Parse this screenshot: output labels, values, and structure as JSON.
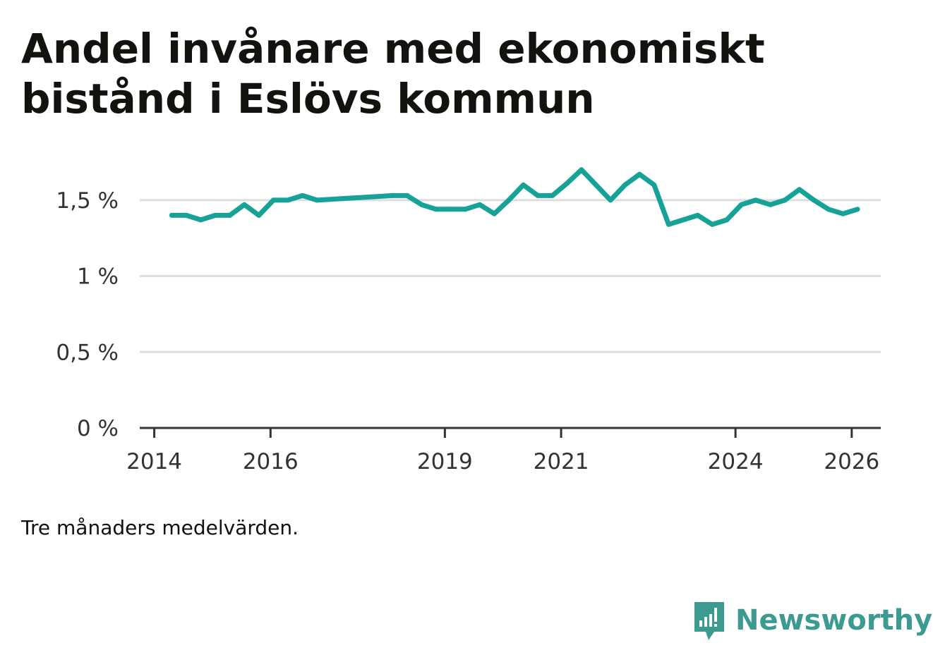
{
  "chart_data": {
    "type": "line",
    "title": "Andel invånare med ekonomiskt bistånd i Eslövs kommun",
    "note": "Tre månaders medelvärden.",
    "xlabel": "",
    "ylabel": "",
    "xlim": [
      2013.75,
      2026.5
    ],
    "ylim": [
      0,
      1.75
    ],
    "x_ticks": [
      {
        "value": 2014,
        "label": "2014"
      },
      {
        "value": 2016,
        "label": "2016"
      },
      {
        "value": 2019,
        "label": "2019"
      },
      {
        "value": 2021,
        "label": "2021"
      },
      {
        "value": 2024,
        "label": "2024"
      },
      {
        "value": 2026,
        "label": "2026"
      }
    ],
    "y_ticks": [
      {
        "value": 0,
        "label": "0 %"
      },
      {
        "value": 0.5,
        "label": "0,5 %"
      },
      {
        "value": 1,
        "label": "1 %"
      },
      {
        "value": 1.5,
        "label": "1,5 %"
      }
    ],
    "grid": true,
    "color": "#16a297",
    "series": [
      {
        "name": "Andel invånare med ekonomiskt bistånd",
        "x": [
          2014.3,
          2014.55,
          2014.8,
          2015.05,
          2015.3,
          2015.55,
          2015.8,
          2016.05,
          2016.3,
          2016.55,
          2016.8,
          2018.1,
          2018.35,
          2018.6,
          2018.85,
          2019.1,
          2019.35,
          2019.6,
          2019.85,
          2020.1,
          2020.35,
          2020.6,
          2020.85,
          2021.1,
          2021.35,
          2021.6,
          2021.85,
          2022.1,
          2022.35,
          2022.6,
          2022.85,
          2023.1,
          2023.35,
          2023.6,
          2023.85,
          2024.1,
          2024.35,
          2024.6,
          2024.85,
          2025.1,
          2025.35,
          2025.6,
          2025.85,
          2026.1
        ],
        "values": [
          1.4,
          1.4,
          1.37,
          1.4,
          1.4,
          1.47,
          1.4,
          1.5,
          1.5,
          1.53,
          1.5,
          1.53,
          1.53,
          1.47,
          1.44,
          1.44,
          1.44,
          1.47,
          1.41,
          1.5,
          1.6,
          1.53,
          1.53,
          1.61,
          1.7,
          1.6,
          1.5,
          1.6,
          1.67,
          1.6,
          1.34,
          1.37,
          1.4,
          1.34,
          1.37,
          1.47,
          1.5,
          1.47,
          1.5,
          1.57,
          1.5,
          1.44,
          1.41,
          1.44
        ]
      }
    ]
  },
  "brand": {
    "name": "Newsworthy",
    "icon": "newsworthy-logo-icon",
    "color": "#3d9a91"
  }
}
